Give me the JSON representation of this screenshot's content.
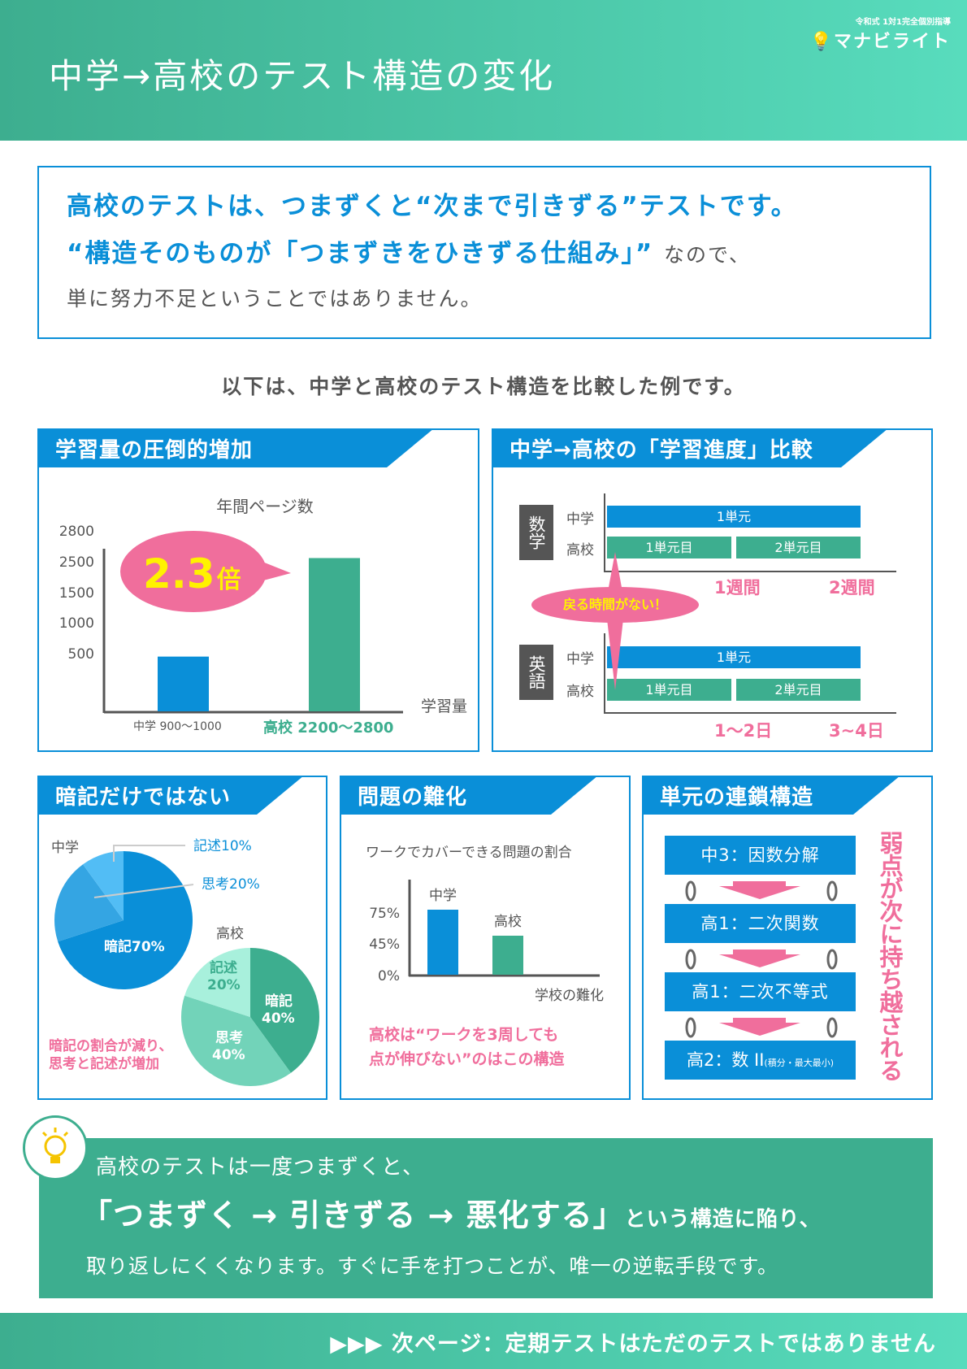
{
  "header": {
    "title": "中学→高校のテスト構造の変化",
    "logo_sub": "令和式 1対1完全個別指導",
    "logo_name": "マナビライト"
  },
  "intro": {
    "line1": "高校のテストは、つまずくと“次まで引きずる”テストです。",
    "line2": "“構造そのものが「つまずきをひきずる仕組み」”",
    "line2_tail": "なので、",
    "line3": "単に努力不足ということではありません。"
  },
  "subtitle": "以下は、中学と高校のテスト構造を比較した例です。",
  "panel1": {
    "title": "学習量の圧倒的増加",
    "bubble_num": "2.3",
    "bubble_unit": "倍"
  },
  "panel2": {
    "title": "中学→高校の「学習進度」比較",
    "math": "数学",
    "english": "英語",
    "jhs": "中学",
    "hs": "高校",
    "unit1": "1単元",
    "unit_first": "1単元目",
    "unit_second": "2単元目",
    "math_t1": "1週間",
    "math_t2": "2週間",
    "eng_t1": "1〜2日",
    "eng_t2": "3~4日",
    "bubble": "戻る時間がない！"
  },
  "panel3": {
    "title": "暗記だけではない",
    "note1": "暗記の割合が減り、",
    "note2": "思考と記述が増加"
  },
  "panel4": {
    "title": "問題の難化",
    "note1": "高校は“ワークを3周しても",
    "note2": "点が伸びない”のはこの構造"
  },
  "panel5": {
    "title": "単元の連鎖構造",
    "steps": [
      "中3：因数分解",
      "高1：二次関数",
      "高1：二次不等式",
      "高2：数 II"
    ],
    "step4_small": "(積分・最大最小)",
    "side": "弱点が次に持ち越される"
  },
  "bottom": {
    "line1": "高校のテストは一度つまずくと、",
    "line2": "「つまずく → 引きずる → 悪化する」",
    "line2_tail": "という構造に陥り、",
    "line3": "取り返しにくくなります。すぐに手を打つことが、唯一の逆転手段です。"
  },
  "footer": {
    "arrows": "▶▶▶",
    "text": "次ページ：定期テストはただのテストではありません"
  },
  "colors": {
    "blue": "#0a8fd8",
    "green": "#3dae8f",
    "pink": "#f06e9c",
    "yellow": "#fff200"
  },
  "chart_data": [
    {
      "type": "bar",
      "title": "年間ページ数",
      "xlabel": "学習量",
      "ylabel": "",
      "yticks": [
        "2800",
        "2500",
        "1500",
        "1000",
        "500"
      ],
      "categories": [
        "中学 900〜1000",
        "高校 2200〜2800"
      ],
      "values": [
        1000,
        2800
      ],
      "ylim": [
        0,
        3000
      ]
    },
    {
      "type": "pie",
      "title": "中学",
      "slices": [
        {
          "label": "暗記70%",
          "name": "暗記",
          "value": 70
        },
        {
          "label": "思考20%",
          "name": "思考",
          "value": 20
        },
        {
          "label": "記述10%",
          "name": "記述",
          "value": 10
        }
      ]
    },
    {
      "type": "pie",
      "title": "高校",
      "slices": [
        {
          "label1": "暗記",
          "label2": "40%",
          "value": 40
        },
        {
          "label1": "思考",
          "label2": "40%",
          "value": 40
        },
        {
          "label1": "記述",
          "label2": "20%",
          "value": 20
        }
      ]
    },
    {
      "type": "bar",
      "title": "ワークでカバーできる問題の割合",
      "xlabel": "学校の難化",
      "yticks": [
        "75%",
        "45%",
        "0%"
      ],
      "categories": [
        "中学",
        "高校"
      ],
      "values": [
        75,
        45
      ],
      "ylim": [
        0,
        100
      ]
    }
  ]
}
